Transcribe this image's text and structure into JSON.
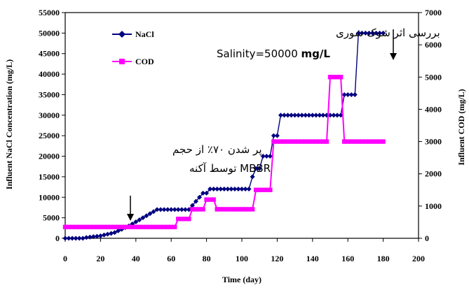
{
  "chart_data": {
    "type": "line",
    "title": "",
    "xlabel": "Time (day)",
    "ylabel_left": "Influent NaCl Concentration (mg/L)",
    "ylabel_right": "Influent COD (mg/L)",
    "xlim": [
      0,
      200
    ],
    "ylim_left": [
      0,
      55000
    ],
    "ylim_right": [
      0,
      7000
    ],
    "x_ticks": [
      "0",
      "20",
      "40",
      "60",
      "80",
      "100",
      "120",
      "140",
      "160",
      "180",
      "200"
    ],
    "y_left_ticks": [
      "0",
      "5000",
      "10000",
      "15000",
      "20000",
      "25000",
      "30000",
      "35000",
      "40000",
      "45000",
      "50000",
      "55000"
    ],
    "y_right_ticks": [
      "0",
      "1000",
      "2000",
      "3000",
      "4000",
      "5000",
      "6000",
      "7000"
    ],
    "grid": false,
    "legend_position": "top-left",
    "series": [
      {
        "name": "NaCl",
        "axis": "left",
        "color": "#000080",
        "marker": "diamond",
        "x": [
          0,
          2,
          4,
          6,
          8,
          10,
          12,
          14,
          16,
          18,
          20,
          22,
          24,
          26,
          28,
          30,
          32,
          34,
          36,
          38,
          40,
          42,
          44,
          46,
          48,
          50,
          52,
          54,
          56,
          58,
          60,
          62,
          64,
          66,
          68,
          70,
          72,
          74,
          76,
          78,
          80,
          82,
          84,
          86,
          88,
          90,
          92,
          94,
          96,
          98,
          100,
          102,
          104,
          106,
          108,
          110,
          112,
          114,
          116,
          118,
          120,
          122,
          124,
          126,
          128,
          130,
          132,
          134,
          136,
          138,
          140,
          142,
          144,
          146,
          148,
          150,
          152,
          154,
          156,
          158,
          160,
          162,
          164,
          166,
          168,
          170,
          172,
          174,
          176,
          178,
          180
        ],
        "values": [
          0,
          0,
          0,
          0,
          0,
          0,
          200,
          300,
          400,
          500,
          600,
          800,
          1000,
          1200,
          1400,
          1800,
          2200,
          2600,
          3000,
          3500,
          4000,
          4500,
          5000,
          5500,
          6000,
          6500,
          7000,
          7000,
          7000,
          7000,
          7000,
          7000,
          7000,
          7000,
          7000,
          7000,
          8000,
          9000,
          10000,
          11000,
          11000,
          12000,
          12000,
          12000,
          12000,
          12000,
          12000,
          12000,
          12000,
          12000,
          12000,
          12000,
          12000,
          15000,
          17000,
          17000,
          20000,
          20000,
          20000,
          25000,
          25000,
          30000,
          30000,
          30000,
          30000,
          30000,
          30000,
          30000,
          30000,
          30000,
          30000,
          30000,
          30000,
          30000,
          30000,
          30000,
          30000,
          30000,
          30000,
          35000,
          35000,
          35000,
          35000,
          50000,
          50000,
          50000,
          50000,
          50000,
          50000,
          50000,
          50000
        ]
      },
      {
        "name": "COD",
        "axis": "right",
        "color": "#ff00ff",
        "marker": "square",
        "x": [
          0,
          2,
          4,
          6,
          8,
          10,
          12,
          14,
          16,
          18,
          20,
          22,
          24,
          26,
          28,
          30,
          32,
          34,
          36,
          38,
          40,
          42,
          44,
          46,
          48,
          50,
          52,
          54,
          56,
          58,
          60,
          62,
          64,
          66,
          68,
          70,
          72,
          74,
          76,
          78,
          80,
          82,
          84,
          86,
          88,
          90,
          92,
          94,
          96,
          98,
          100,
          102,
          104,
          106,
          108,
          110,
          112,
          114,
          116,
          118,
          120,
          122,
          124,
          126,
          128,
          130,
          132,
          134,
          136,
          138,
          140,
          142,
          144,
          146,
          148,
          150,
          152,
          154,
          156,
          158,
          160,
          162,
          164,
          166,
          168,
          170,
          172,
          174,
          176,
          178,
          180
        ],
        "values": [
          350,
          350,
          350,
          350,
          350,
          350,
          350,
          350,
          350,
          350,
          350,
          350,
          350,
          350,
          350,
          350,
          350,
          350,
          350,
          350,
          350,
          350,
          350,
          350,
          350,
          350,
          350,
          350,
          350,
          350,
          350,
          350,
          600,
          600,
          600,
          600,
          900,
          900,
          900,
          900,
          1200,
          1200,
          1200,
          900,
          900,
          900,
          900,
          900,
          900,
          900,
          900,
          900,
          900,
          900,
          1500,
          1500,
          1500,
          1500,
          1500,
          3000,
          3000,
          3000,
          3000,
          3000,
          3000,
          3000,
          3000,
          3000,
          3000,
          3000,
          3000,
          3000,
          3000,
          3000,
          3000,
          5000,
          5000,
          5000,
          5000,
          3000,
          3000,
          3000,
          3000,
          3000,
          3000,
          3000,
          3000,
          3000,
          3000,
          3000,
          3000
        ]
      }
    ],
    "annotations": [
      {
        "id": "fill70",
        "line1": "پر شدن ۷۰٪ از حجم",
        "line2": "MBBR توسط آکنه"
      },
      {
        "id": "shock",
        "line1": "بررسی اثر شوک شوری",
        "line2_prefix": "Salinity=50000 ",
        "line2_bold": "mg/L"
      }
    ]
  }
}
